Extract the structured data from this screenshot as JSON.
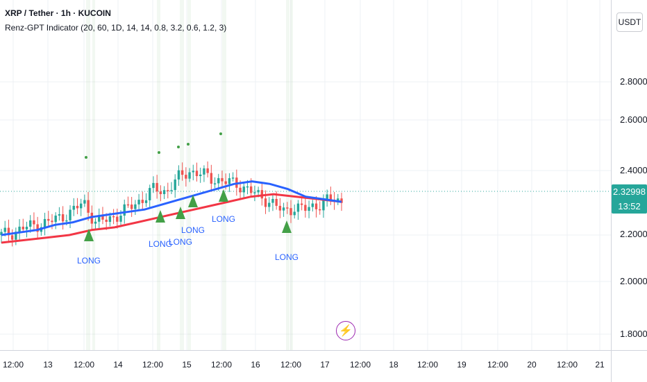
{
  "header": {
    "title": "XRP / Tether · 1h · KUCOIN",
    "indicator": "Renz-GPT Indicator (20, 60, 1D, 14, 14, 0.8, 3.2, 0.6, 1.2, 3)"
  },
  "price_axis": {
    "currency": "USDT",
    "ticks": [
      "2.80000",
      "2.60000",
      "2.40000",
      "2.20000",
      "2.00000",
      "1.80000"
    ],
    "last_price": "2.32998",
    "countdown": "13:52"
  },
  "time_axis": {
    "ticks": [
      "12:00",
      "13",
      "12:00",
      "14",
      "12:00",
      "15",
      "12:00",
      "16",
      "12:00",
      "17",
      "12:00",
      "18",
      "12:00",
      "19",
      "12:00",
      "20",
      "12:00",
      "21"
    ]
  },
  "signals": {
    "labels": [
      "LONG",
      "LONG",
      "LONG",
      "LONG",
      "LONG",
      "LONG"
    ]
  },
  "colors": {
    "up": "#26a69a",
    "down": "#ef5350",
    "fast_ma": "#2962ff",
    "slow_ma": "#f23645",
    "signal": "#43a047",
    "label": "#2962ff"
  },
  "icons": [
    "lightning-icon"
  ],
  "chart_data": {
    "type": "candlestick",
    "title": "XRP / Tether · 1h · KUCOIN",
    "ylim": [
      1.77,
      2.99
    ],
    "series": [
      {
        "name": "price",
        "values": [
          2.2,
          2.21,
          2.23,
          2.24,
          2.25,
          2.27,
          2.29,
          2.33,
          2.25,
          2.26,
          2.28,
          2.31,
          2.34,
          2.38,
          2.37,
          2.42,
          2.45,
          2.44,
          2.42,
          2.41,
          2.4,
          2.38,
          2.35,
          2.33,
          2.29,
          2.31,
          2.3,
          2.32,
          2.34,
          2.33
        ]
      },
      {
        "name": "",
        "values": [
          2.2,
          2.21,
          2.22,
          2.24,
          2.25,
          2.27,
          2.28,
          2.29,
          2.3,
          2.32,
          2.34,
          2.36,
          2.38,
          2.4,
          2.41,
          2.4,
          2.38,
          2.35,
          2.34,
          2.33
        ]
      },
      {
        "name": "",
        "values": [
          2.17,
          2.18,
          2.19,
          2.2,
          2.22,
          2.23,
          2.25,
          2.27,
          2.29,
          2.31,
          2.33,
          2.35,
          2.36,
          2.35,
          2.34,
          2.33
        ]
      }
    ],
    "grid": true
  }
}
